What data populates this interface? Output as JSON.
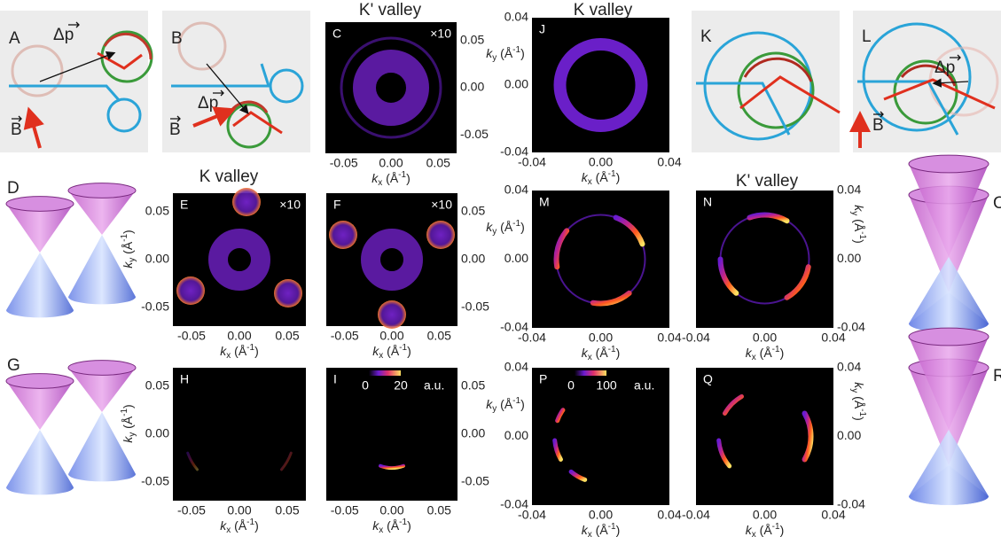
{
  "sketches": [
    {
      "label": "A",
      "delta_p": "Δp",
      "field": "B"
    },
    {
      "label": "B",
      "delta_p": "Δp",
      "field": "B"
    },
    {
      "label": "K"
    },
    {
      "label": "L",
      "delta_p": "Δp",
      "field": "B"
    }
  ],
  "cones": [
    {
      "label": "D"
    },
    {
      "label": "G"
    },
    {
      "label": "O"
    },
    {
      "label": "R"
    }
  ],
  "maps": [
    {
      "label": "C",
      "title": "K' valley",
      "note": "×10",
      "xticks": [
        "-0.05",
        "0.00",
        "0.05"
      ],
      "yticks": [
        "0.05",
        "0.00",
        "-0.05"
      ],
      "xlabel": {
        "symbol": "k",
        "sub": "x",
        "unit": " (Å",
        "sup": "-1",
        "end": ")"
      }
    },
    {
      "label": "J",
      "title": "K valley",
      "xticks": [
        "-0.04",
        "0.00",
        "0.04"
      ],
      "yticks": [
        "0.04",
        "0.00",
        "-0.04"
      ],
      "xlabel": {
        "symbol": "k",
        "sub": "x",
        "unit": " (Å",
        "sup": "-1",
        "end": ")"
      },
      "ylabel": {
        "symbol": "k",
        "sub": "y",
        "unit": " (Å",
        "sup": "-1",
        "end": ")"
      }
    },
    {
      "label": "E",
      "title": "K valley",
      "note": "×10",
      "xticks": [
        "-0.05",
        "0.00",
        "0.05"
      ],
      "yticks": [
        "0.05",
        "0.00",
        "-0.05"
      ],
      "xlabel": {
        "symbol": "k",
        "sub": "x",
        "unit": " (Å",
        "sup": "-1",
        "end": ")"
      },
      "ylabel": {
        "symbol": "k",
        "sub": "y",
        "unit": " (Å",
        "sup": "-1",
        "end": ")"
      }
    },
    {
      "label": "F",
      "note": "×10",
      "xticks": [
        "-0.05",
        "0.00",
        "0.05"
      ],
      "yticks": [
        "0.05",
        "0.00",
        "-0.05"
      ],
      "xlabel": {
        "symbol": "k",
        "sub": "x",
        "unit": " (Å",
        "sup": "-1",
        "end": ")"
      }
    },
    {
      "label": "M",
      "xticks": [
        "-0.04",
        "0.00",
        "0.04"
      ],
      "yticks": [
        "0.04",
        "0.00",
        "-0.04"
      ],
      "xlabel": {
        "symbol": "k",
        "sub": "x",
        "unit": " (Å",
        "sup": "-1",
        "end": ")"
      },
      "ylabel": {
        "symbol": "k",
        "sub": "y",
        "unit": " (Å",
        "sup": "-1",
        "end": ")"
      }
    },
    {
      "label": "N",
      "title": "K' valley",
      "xticks": [
        "-0.04",
        "0.00",
        "0.04"
      ],
      "yticks": [
        "0.04",
        "0.00",
        "-0.04"
      ],
      "xlabel": {
        "symbol": "k",
        "sub": "x",
        "unit": " (Å",
        "sup": "-1",
        "end": ")"
      },
      "ylabel": {
        "symbol": "k",
        "sub": "y",
        "unit": " (Å",
        "sup": "-1",
        "end": ")"
      }
    },
    {
      "label": "H",
      "xticks": [
        "-0.05",
        "0.00",
        "0.05"
      ],
      "yticks": [
        "0.05",
        "0.00",
        "-0.05"
      ],
      "xlabel": {
        "symbol": "k",
        "sub": "x",
        "unit": " (Å",
        "sup": "-1",
        "end": ")"
      },
      "ylabel": {
        "symbol": "k",
        "sub": "y",
        "unit": " (Å",
        "sup": "-1",
        "end": ")"
      }
    },
    {
      "label": "I",
      "colorbar": {
        "min": "0",
        "max": "20",
        "unit": "a.u."
      },
      "xticks": [
        "-0.05",
        "0.00",
        "0.05"
      ],
      "yticks": [
        "0.05",
        "0.00",
        "-0.05"
      ],
      "xlabel": {
        "symbol": "k",
        "sub": "x",
        "unit": " (Å",
        "sup": "-1",
        "end": ")"
      }
    },
    {
      "label": "P",
      "colorbar": {
        "min": "0",
        "max": "100",
        "unit": "a.u."
      },
      "xticks": [
        "-0.04",
        "0.00",
        "0.04"
      ],
      "yticks": [
        "0.04",
        "0.00",
        "-0.04"
      ],
      "xlabel": {
        "symbol": "k",
        "sub": "x",
        "unit": " (Å",
        "sup": "-1",
        "end": ")"
      },
      "ylabel": {
        "symbol": "k",
        "sub": "y",
        "unit": " (Å",
        "sup": "-1",
        "end": ")"
      }
    },
    {
      "label": "Q",
      "xticks": [
        "-0.04",
        "0.00",
        "0.04"
      ],
      "yticks": [
        "0.04",
        "0.00",
        "-0.04"
      ],
      "xlabel": {
        "symbol": "k",
        "sub": "x",
        "unit": " (Å",
        "sup": "-1",
        "end": ")"
      },
      "ylabel": {
        "symbol": "k",
        "sub": "y",
        "unit": " (Å",
        "sup": "-1",
        "end": ")"
      }
    }
  ]
}
